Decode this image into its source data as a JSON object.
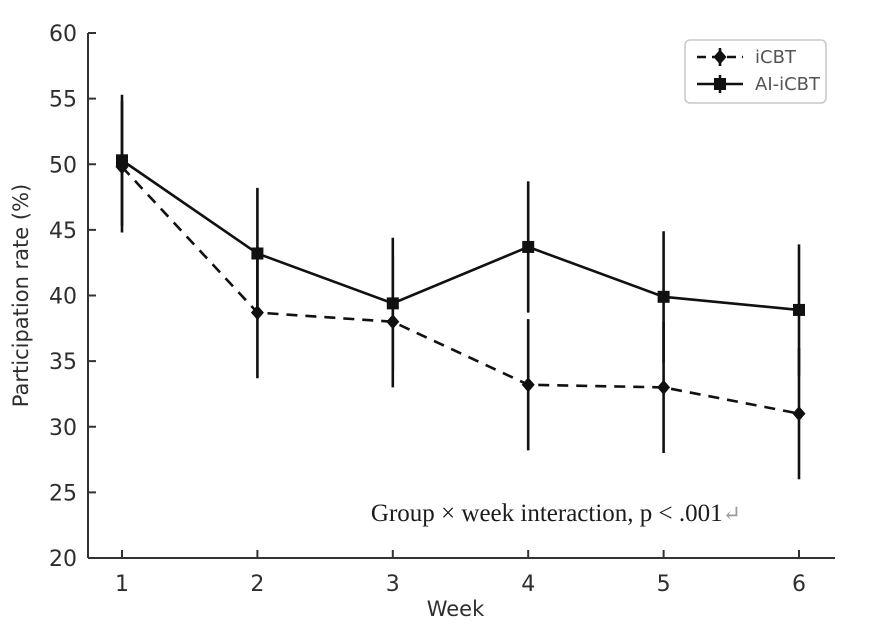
{
  "chart_data": {
    "type": "line",
    "x": [
      1,
      2,
      3,
      4,
      5,
      6
    ],
    "series": [
      {
        "name": "iCBT",
        "values": [
          49.8,
          38.7,
          38.0,
          33.2,
          33.0,
          31.0
        ],
        "yerr": [
          5,
          5,
          5,
          5,
          5,
          5
        ],
        "line_style": "dashed",
        "marker": "diamond",
        "color": "#111111"
      },
      {
        "name": "AI-iCBT",
        "values": [
          50.3,
          43.2,
          39.4,
          43.7,
          39.9,
          38.9
        ],
        "yerr": [
          5,
          5,
          5,
          5,
          5,
          5
        ],
        "line_style": "solid",
        "marker": "square",
        "color": "#111111"
      }
    ],
    "title": "",
    "xlabel": "Week",
    "ylabel": "Participation rate (%)",
    "xticks": [
      1,
      2,
      3,
      4,
      5,
      6
    ],
    "yticks": [
      20,
      25,
      30,
      35,
      40,
      45,
      50,
      55,
      60
    ],
    "ylim": [
      20,
      60
    ],
    "grid": false,
    "legend_position": "upper right",
    "annotation": {
      "text": "Group × week interaction, p < .001",
      "suffix": "↵"
    }
  },
  "colors": {
    "line": "#111111",
    "spine": "#333333",
    "tick_label": "#2e2e2e",
    "legend_text": "#555555",
    "legend_border": "#c9c9c9",
    "legend_bg": "#ffffff",
    "annotation": "#1c1c1c",
    "annotation_suffix": "#9a9a9a",
    "background": "#ffffff"
  }
}
